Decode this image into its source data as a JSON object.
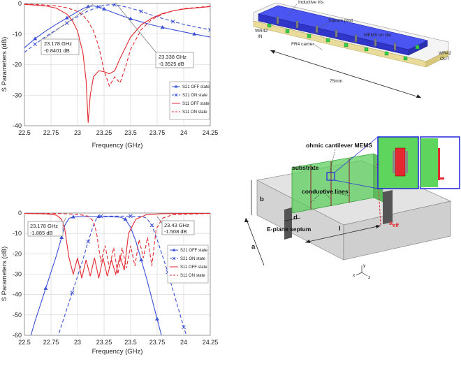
{
  "colors": {
    "s21": "#3a50d8",
    "s11": "#e3282f",
    "grid": "#d0d0d0",
    "green": "#3fcf4a",
    "body": "#d9d9d9",
    "blue": "#3a3ff0"
  },
  "chart_data": [
    {
      "type": "line",
      "title": "",
      "xlabel": "Frequency (GHz)",
      "ylabel": "S Parameters (dB)",
      "xlim": [
        22.5,
        24.25
      ],
      "ylim": [
        -40,
        0
      ],
      "xticks": [
        "22.5",
        "22.75",
        "23",
        "23.25",
        "23.5",
        "23.75",
        "24",
        "24.25"
      ],
      "yticks": [
        "0",
        "-10",
        "-20",
        "-30",
        "-40"
      ],
      "legend_position": "bottom-right",
      "annotations": [
        {
          "line1": "23.178 GHz",
          "line2": "-0.8401 dB",
          "at": [
            23.178,
            -0.84
          ]
        },
        {
          "line1": "23.338 GHz",
          "line2": "-0.3525 dB",
          "at": [
            23.338,
            -0.35
          ]
        }
      ],
      "series": [
        {
          "name": "S21 OFF state",
          "style": "solid",
          "marker": "triangle",
          "color": "s21",
          "x": [
            22.5,
            22.6,
            22.7,
            22.8,
            22.9,
            23.0,
            23.05,
            23.1,
            23.15,
            23.2,
            23.25,
            23.3,
            23.4,
            23.5,
            23.6,
            23.7,
            23.8,
            23.9,
            24.0,
            24.1,
            24.25
          ],
          "y": [
            -14.5,
            -11.5,
            -9.0,
            -6.8,
            -4.7,
            -2.7,
            -1.7,
            -1.0,
            -0.8,
            -1.1,
            -1.8,
            -2.5,
            -3.8,
            -5.0,
            -6.0,
            -7.0,
            -7.8,
            -8.6,
            -9.3,
            -10.0,
            -11.0
          ]
        },
        {
          "name": "S21 ON state",
          "style": "dashed",
          "marker": "x",
          "color": "s21",
          "x": [
            22.5,
            22.6,
            22.7,
            22.8,
            22.9,
            23.0,
            23.1,
            23.2,
            23.25,
            23.3,
            23.35,
            23.4,
            23.5,
            23.6,
            23.7,
            23.8,
            23.9,
            24.0,
            24.1,
            24.25
          ],
          "y": [
            -16.0,
            -13.3,
            -10.8,
            -8.6,
            -6.4,
            -4.3,
            -2.4,
            -1.1,
            -0.6,
            -0.4,
            -0.4,
            -0.7,
            -1.5,
            -2.6,
            -3.8,
            -4.9,
            -5.9,
            -6.8,
            -7.6,
            -8.6
          ]
        },
        {
          "name": "S11 OFF state",
          "style": "solid",
          "marker": "none",
          "color": "s11",
          "x": [
            22.5,
            22.6,
            22.7,
            22.8,
            22.9,
            22.95,
            23.0,
            23.05,
            23.08,
            23.1,
            23.12,
            23.15,
            23.2,
            23.25,
            23.3,
            23.35,
            23.4,
            23.5,
            23.6,
            23.7,
            23.8,
            23.9,
            24.0,
            24.25
          ],
          "y": [
            -0.3,
            -0.5,
            -0.8,
            -1.5,
            -3.5,
            -5.5,
            -9.0,
            -16.0,
            -25.0,
            -39.0,
            -30.0,
            -24.0,
            -22.0,
            -22.3,
            -23.0,
            -22.0,
            -18.0,
            -11.0,
            -7.0,
            -4.8,
            -3.3,
            -2.4,
            -1.8,
            -1.0
          ]
        },
        {
          "name": "S11 ON state",
          "style": "dashed",
          "marker": "none",
          "color": "s11",
          "x": [
            22.5,
            22.6,
            22.7,
            22.8,
            22.9,
            23.0,
            23.05,
            23.1,
            23.15,
            23.2,
            23.25,
            23.3,
            23.35,
            23.4,
            23.45,
            23.5,
            23.6,
            23.7,
            23.8,
            23.9,
            24.0,
            24.25
          ],
          "y": [
            -0.2,
            -0.3,
            -0.5,
            -0.8,
            -1.4,
            -2.6,
            -3.8,
            -5.8,
            -9.0,
            -14.0,
            -22.0,
            -27.0,
            -24.0,
            -26.0,
            -21.0,
            -15.0,
            -8.5,
            -5.2,
            -3.5,
            -2.4,
            -1.7,
            -0.9
          ]
        }
      ]
    },
    {
      "type": "line",
      "title": "",
      "xlabel": "Frequency (GHz)",
      "ylabel": "S Parameters (dB)",
      "xlim": [
        22.5,
        24.25
      ],
      "ylim": [
        -60,
        0
      ],
      "xticks": [
        "22.5",
        "22.75",
        "23",
        "23.25",
        "23.5",
        "23.75",
        "24",
        "24.25"
      ],
      "yticks": [
        "0",
        "-10",
        "-20",
        "-30",
        "-40",
        "-50",
        "-60"
      ],
      "legend_position": "right",
      "annotations": [
        {
          "line1": "23.178 GHz",
          "line2": "-1.885 dB",
          "at": [
            22.88,
            -1.9
          ]
        },
        {
          "line1": "23.43 GHz",
          "line2": "-1.508 dB",
          "at": [
            23.65,
            -1.5
          ]
        }
      ],
      "series": [
        {
          "name": "S21 OFF state",
          "style": "solid",
          "marker": "triangle",
          "color": "s21",
          "x": [
            22.5,
            22.55,
            22.6,
            22.65,
            22.7,
            22.75,
            22.8,
            22.85,
            22.88,
            22.92,
            22.96,
            23.0,
            23.1,
            23.2,
            23.3,
            23.4,
            23.45,
            23.5,
            23.55,
            23.6,
            23.65,
            23.7,
            23.75,
            23.8
          ],
          "y": [
            -72,
            -62,
            -53,
            -45,
            -37,
            -29,
            -21,
            -12,
            -6,
            -2.6,
            -1.9,
            -1.8,
            -1.7,
            -1.7,
            -1.8,
            -2.0,
            -3.0,
            -7.0,
            -14,
            -23,
            -32,
            -42,
            -52,
            -62
          ]
        },
        {
          "name": "S21 ON state",
          "style": "dashed",
          "marker": "x",
          "color": "s21",
          "x": [
            22.75,
            22.8,
            22.85,
            22.9,
            22.95,
            23.0,
            23.05,
            23.1,
            23.15,
            23.18,
            23.22,
            23.3,
            23.4,
            23.5,
            23.6,
            23.65,
            23.7,
            23.75,
            23.8,
            23.85,
            23.9,
            23.95,
            24.0,
            24.05
          ],
          "y": [
            -72,
            -63,
            -55,
            -47,
            -39,
            -31,
            -23,
            -14,
            -6,
            -2.5,
            -1.6,
            -1.5,
            -1.5,
            -1.5,
            -1.6,
            -2.5,
            -6.0,
            -13,
            -21,
            -29,
            -38,
            -47,
            -56,
            -64
          ]
        },
        {
          "name": "S11 OFF state",
          "style": "solid",
          "marker": "none",
          "color": "s11",
          "x": [
            22.5,
            22.7,
            22.8,
            22.85,
            22.88,
            22.92,
            22.96,
            23.0,
            23.04,
            23.08,
            23.12,
            23.16,
            23.2,
            23.24,
            23.28,
            23.32,
            23.36,
            23.4,
            23.44,
            23.48,
            23.55,
            23.65,
            23.8,
            24.25
          ],
          "y": [
            -0.2,
            -0.4,
            -1.0,
            -3.0,
            -8.0,
            -22,
            -30,
            -22,
            -32,
            -23,
            -31,
            -22,
            -32,
            -22,
            -31,
            -23,
            -30,
            -21,
            -28,
            -10,
            -3.0,
            -0.8,
            -0.3,
            -0.1
          ]
        },
        {
          "name": "S11 ON state",
          "style": "dashed",
          "marker": "none",
          "color": "s11",
          "x": [
            22.5,
            22.8,
            23.0,
            23.1,
            23.15,
            23.18,
            23.22,
            23.26,
            23.3,
            23.34,
            23.38,
            23.42,
            23.46,
            23.5,
            23.54,
            23.58,
            23.62,
            23.66,
            23.7,
            23.74,
            23.8,
            23.9,
            24.25
          ],
          "y": [
            -0.1,
            -0.2,
            -0.6,
            -1.5,
            -4.0,
            -10,
            -24,
            -16,
            -27,
            -17,
            -30,
            -17,
            -27,
            -16,
            -26,
            -13,
            -22,
            -12,
            -26,
            -8.0,
            -2.5,
            -0.8,
            -0.2
          ]
        }
      ]
    }
  ],
  "fig_top_right": {
    "labels": {
      "inductive_iris": "Inductive iris",
      "square_post": "Square post",
      "mems_on_die": "MEMS on die",
      "fr4_carrier": "FR4 carrier",
      "wr42_in": "WR42",
      "wr42_in_2": "IN",
      "wr42_out": "WR42",
      "wr42_out_2": "OUT",
      "length": "75mm"
    }
  },
  "fig_bottom_right": {
    "labels": {
      "ohmic": "ohmic cantilever MEMS",
      "substrate": "substrate",
      "conductive": "conductive lines",
      "b": "b",
      "d": "d",
      "e_septum": "E-plane septum",
      "l": "l",
      "a": "a",
      "a_eff": "a",
      "a_eff_sub": "eff",
      "ax_x": "x",
      "ax_y": "y",
      "ax_z": "z"
    }
  }
}
